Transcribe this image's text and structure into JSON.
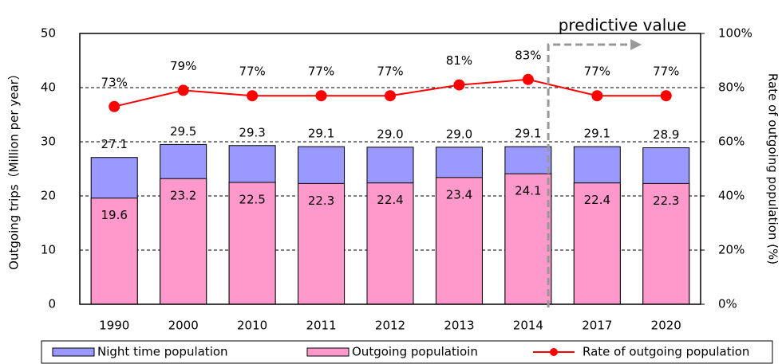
{
  "chart_data": {
    "type": "bar",
    "ylabel": "Outgoing trips（Million per year）",
    "y2label": "Rate of outgoing population (%)",
    "annotation": "predictive value",
    "categories": [
      "1990",
      "2000",
      "2010",
      "2011",
      "2012",
      "2013",
      "2014",
      "2017",
      "2020"
    ],
    "series": [
      {
        "name": "Night time population",
        "color": "#9999ff",
        "values": [
          27.1,
          29.5,
          29.3,
          29.1,
          29.0,
          29.0,
          29.1,
          29.1,
          28.9
        ],
        "value_labels": [
          "27.1",
          "29.5",
          "29.3",
          "29.1",
          "29.0",
          "29.0",
          "29.1",
          "29.1",
          "28.9"
        ]
      },
      {
        "name": "Outgoing populatioin",
        "color": "#ff99cc",
        "values": [
          19.6,
          23.2,
          22.5,
          22.3,
          22.4,
          23.4,
          24.1,
          22.4,
          22.3
        ],
        "value_labels": [
          "19.6",
          "23.2",
          "22.5",
          "22.3",
          "22.4",
          "23.4",
          "24.1",
          "22.4",
          "22.3"
        ]
      },
      {
        "name": "Rate of outgoing population",
        "color": "#ff0000",
        "type": "line",
        "axis": "y2",
        "values": [
          73,
          79,
          77,
          77,
          77,
          81,
          83,
          77,
          77
        ],
        "value_labels": [
          "73%",
          "79%",
          "77%",
          "77%",
          "77%",
          "81%",
          "83%",
          "77%",
          "77%"
        ]
      }
    ],
    "ylim": [
      0,
      50
    ],
    "yticks": [
      0,
      10,
      20,
      30,
      40,
      50
    ],
    "y2lim": [
      0,
      100
    ],
    "y2ticks": [
      {
        "value": 0,
        "label": "0%"
      },
      {
        "value": 20,
        "label": "20%"
      },
      {
        "value": 40,
        "label": "40%"
      },
      {
        "value": 60,
        "label": "60%"
      },
      {
        "value": 80,
        "label": "80%"
      },
      {
        "value": 100,
        "label": "100%"
      }
    ],
    "grid": true
  }
}
